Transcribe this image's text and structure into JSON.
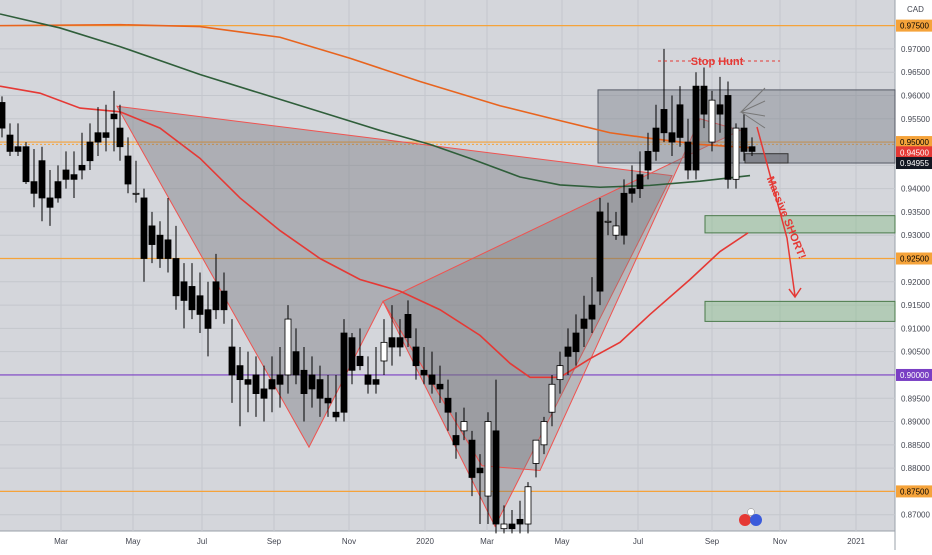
{
  "chart_data": {
    "type": "candlestick",
    "currency_label": "CAD",
    "x_tick_labels": [
      "Mar",
      "May",
      "Jul",
      "Sep",
      "Nov",
      "2020",
      "Mar",
      "May",
      "Jul",
      "Sep",
      "Nov",
      "2021"
    ],
    "y_tick_labels": [
      "0.97000",
      "0.96500",
      "0.96000",
      "0.95500",
      "0.95000",
      "0.94500",
      "0.94000",
      "0.93500",
      "0.93000",
      "0.92500",
      "0.92000",
      "0.91500",
      "0.91000",
      "0.90500",
      "0.90000",
      "0.89500",
      "0.89000",
      "0.88500",
      "0.88000",
      "0.87500",
      "0.87000"
    ],
    "ylim": [
      0.8665,
      0.9805
    ],
    "price_badges": [
      {
        "label": "0.97500",
        "value": 0.975,
        "color": "#f5a33a",
        "text_color": "#000000"
      },
      {
        "label": "0.95000",
        "value": 0.95,
        "color": "#f5a33a",
        "text_color": "#000000"
      },
      {
        "label": "0.94500",
        "value": 0.9478,
        "color": "#e53935",
        "text_color": "#ffffff"
      },
      {
        "label": "0.94955",
        "value": 0.9455,
        "color": "#131722",
        "text_color": "#ffffff"
      },
      {
        "label": "0.92500",
        "value": 0.925,
        "color": "#f5a33a",
        "text_color": "#000000"
      },
      {
        "label": "0.90000",
        "value": 0.9,
        "color": "#7a3fc4",
        "text_color": "#ffffff"
      },
      {
        "label": "0.87500",
        "value": 0.875,
        "color": "#f5a33a",
        "text_color": "#000000"
      }
    ],
    "horizontal_levels": [
      {
        "value": 0.975,
        "color": "#f5a33a"
      },
      {
        "value": 0.95,
        "color": "#f5a33a"
      },
      {
        "value": 0.925,
        "color": "#f5a33a"
      },
      {
        "value": 0.9,
        "color": "#7a3fc4"
      },
      {
        "value": 0.875,
        "color": "#f5a33a"
      }
    ],
    "moving_averages": [
      {
        "color": "#e8641e",
        "points": [
          [
            0,
            0.975
          ],
          [
            120,
            0.9752
          ],
          [
            200,
            0.9748
          ],
          [
            280,
            0.9725
          ],
          [
            350,
            0.968
          ],
          [
            420,
            0.963
          ],
          [
            500,
            0.9578
          ],
          [
            560,
            0.9546
          ],
          [
            610,
            0.952
          ],
          [
            650,
            0.9508
          ],
          [
            700,
            0.9495
          ],
          [
            750,
            0.9488
          ]
        ]
      },
      {
        "color": "#2f5e3a",
        "points": [
          [
            0,
            0.9775
          ],
          [
            60,
            0.9745
          ],
          [
            120,
            0.9705
          ],
          [
            200,
            0.9645
          ],
          [
            260,
            0.9605
          ],
          [
            320,
            0.9565
          ],
          [
            380,
            0.9525
          ],
          [
            430,
            0.9495
          ],
          [
            470,
            0.9465
          ],
          [
            520,
            0.9425
          ],
          [
            560,
            0.9408
          ],
          [
            600,
            0.9403
          ],
          [
            650,
            0.9407
          ],
          [
            700,
            0.9416
          ],
          [
            750,
            0.9428
          ]
        ]
      },
      {
        "color": "#e53935",
        "points": [
          [
            0,
            0.962
          ],
          [
            40,
            0.9605
          ],
          [
            80,
            0.9573
          ],
          [
            120,
            0.9565
          ],
          [
            160,
            0.953
          ],
          [
            200,
            0.9465
          ],
          [
            240,
            0.938
          ],
          [
            280,
            0.931
          ],
          [
            320,
            0.925
          ],
          [
            360,
            0.9205
          ],
          [
            400,
            0.918
          ],
          [
            440,
            0.914
          ],
          [
            480,
            0.9085
          ],
          [
            510,
            0.9025
          ],
          [
            530,
            0.8995
          ],
          [
            560,
            0.8995
          ],
          [
            590,
            0.9035
          ],
          [
            620,
            0.907
          ],
          [
            650,
            0.913
          ],
          [
            690,
            0.9205
          ],
          [
            720,
            0.9265
          ],
          [
            748,
            0.9305
          ]
        ]
      }
    ],
    "harmonic_patterns": [
      {
        "fill": "rgba(110,110,115,0.38)",
        "points": [
          [
            117,
            0.9577
          ],
          [
            309,
            0.8845
          ],
          [
            383,
            0.9158
          ],
          [
            495,
            0.8675
          ],
          [
            672,
            0.9428
          ]
        ]
      },
      {
        "fill": "rgba(120,120,125,0.32)",
        "points": [
          [
            383,
            0.9158
          ],
          [
            482,
            0.8805
          ],
          [
            540,
            0.8795
          ],
          [
            700,
            0.955
          ],
          [
            740,
            0.9525
          ]
        ]
      }
    ],
    "zones": [
      {
        "x1": 598,
        "x2": 895,
        "top": 0.9612,
        "bottom": 0.9455,
        "fill": "rgba(120,123,134,0.42)",
        "stroke": "#555a66"
      },
      {
        "x1": 705,
        "x2": 895,
        "top": 0.9342,
        "bottom": 0.9305,
        "fill": "rgba(140,190,140,0.45)",
        "stroke": "#4a7a4a"
      },
      {
        "x1": 705,
        "x2": 895,
        "top": 0.9158,
        "bottom": 0.9115,
        "fill": "rgba(140,190,140,0.45)",
        "stroke": "#4a7a4a"
      },
      {
        "x1": 745,
        "x2": 788,
        "top": 0.9475,
        "bottom": 0.9455,
        "fill": "rgba(90,90,100,0.5)",
        "stroke": "#333333"
      }
    ],
    "annotations": [
      {
        "text": "Stop Hunt",
        "color": "#e53935",
        "x": 717,
        "value": 0.9665
      },
      {
        "text": "Massive SHORT!",
        "color": "#e53935",
        "x": 783,
        "value": 0.9335,
        "rotate": 68
      }
    ],
    "candles": [
      [
        2,
        0.9585,
        0.9598,
        0.953,
        0.951
      ],
      [
        10,
        0.9515,
        0.954,
        0.948,
        0.947
      ],
      [
        18,
        0.949,
        0.954,
        0.948,
        0.947
      ],
      [
        26,
        0.949,
        0.95,
        0.9415,
        0.941
      ],
      [
        34,
        0.9415,
        0.9485,
        0.939,
        0.936
      ],
      [
        42,
        0.946,
        0.949,
        0.938,
        0.933
      ],
      [
        50,
        0.938,
        0.944,
        0.936,
        0.932
      ],
      [
        58,
        0.9415,
        0.945,
        0.938,
        0.937
      ],
      [
        66,
        0.944,
        0.948,
        0.942,
        0.94
      ],
      [
        74,
        0.943,
        0.948,
        0.942,
        0.938
      ],
      [
        82,
        0.945,
        0.952,
        0.944,
        0.942
      ],
      [
        90,
        0.95,
        0.954,
        0.946,
        0.944
      ],
      [
        98,
        0.952,
        0.9575,
        0.95,
        0.947
      ],
      [
        106,
        0.952,
        0.958,
        0.951,
        0.948
      ],
      [
        114,
        0.956,
        0.961,
        0.955,
        0.948
      ],
      [
        120,
        0.953,
        0.958,
        0.949,
        0.946
      ],
      [
        128,
        0.947,
        0.951,
        0.941,
        0.939
      ],
      [
        136,
        0.939,
        0.946,
        0.939,
        0.937
      ],
      [
        144,
        0.938,
        0.94,
        0.925,
        0.92
      ],
      [
        152,
        0.932,
        0.935,
        0.928,
        0.924
      ],
      [
        160,
        0.93,
        0.933,
        0.925,
        0.923
      ],
      [
        168,
        0.929,
        0.938,
        0.925,
        0.922
      ],
      [
        176,
        0.925,
        0.932,
        0.917,
        0.914
      ],
      [
        184,
        0.92,
        0.924,
        0.916,
        0.91
      ],
      [
        192,
        0.919,
        0.924,
        0.914,
        0.912
      ],
      [
        200,
        0.917,
        0.922,
        0.913,
        0.909
      ],
      [
        208,
        0.914,
        0.92,
        0.91,
        0.904
      ],
      [
        216,
        0.92,
        0.926,
        0.914,
        0.912
      ],
      [
        224,
        0.918,
        0.922,
        0.914,
        0.911
      ],
      [
        232,
        0.906,
        0.912,
        0.9,
        0.894
      ],
      [
        240,
        0.902,
        0.906,
        0.899,
        0.889
      ],
      [
        248,
        0.899,
        0.905,
        0.898,
        0.892
      ],
      [
        256,
        0.9,
        0.904,
        0.896,
        0.891
      ],
      [
        264,
        0.897,
        0.902,
        0.895,
        0.89
      ],
      [
        272,
        0.899,
        0.904,
        0.897,
        0.892
      ],
      [
        280,
        0.9,
        0.906,
        0.898,
        0.893
      ],
      [
        288,
        0.9,
        0.915,
        0.912,
        0.896
      ],
      [
        296,
        0.905,
        0.91,
        0.9,
        0.898
      ],
      [
        304,
        0.901,
        0.906,
        0.896,
        0.89
      ],
      [
        312,
        0.9,
        0.904,
        0.897,
        0.893
      ],
      [
        320,
        0.899,
        0.902,
        0.895,
        0.891
      ],
      [
        328,
        0.895,
        0.9,
        0.894,
        0.891
      ],
      [
        336,
        0.892,
        0.9,
        0.891,
        0.89
      ],
      [
        344,
        0.909,
        0.912,
        0.892,
        0.89
      ],
      [
        352,
        0.908,
        0.909,
        0.901,
        0.898
      ],
      [
        360,
        0.904,
        0.91,
        0.902,
        0.901
      ],
      [
        368,
        0.9,
        0.904,
        0.898,
        0.896
      ],
      [
        376,
        0.899,
        0.906,
        0.898,
        0.896
      ],
      [
        384,
        0.903,
        0.912,
        0.907,
        0.9
      ],
      [
        392,
        0.908,
        0.915,
        0.906,
        0.902
      ],
      [
        400,
        0.908,
        0.912,
        0.906,
        0.904
      ],
      [
        408,
        0.913,
        0.916,
        0.908,
        0.906
      ],
      [
        416,
        0.906,
        0.91,
        0.902,
        0.899
      ],
      [
        424,
        0.901,
        0.906,
        0.9,
        0.898
      ],
      [
        432,
        0.9,
        0.905,
        0.898,
        0.896
      ],
      [
        440,
        0.898,
        0.902,
        0.897,
        0.894
      ],
      [
        448,
        0.895,
        0.899,
        0.892,
        0.888
      ],
      [
        456,
        0.887,
        0.892,
        0.885,
        0.882
      ],
      [
        464,
        0.888,
        0.893,
        0.89,
        0.886
      ],
      [
        472,
        0.886,
        0.888,
        0.878,
        0.874
      ],
      [
        480,
        0.88,
        0.883,
        0.879,
        0.868
      ],
      [
        488,
        0.874,
        0.892,
        0.89,
        0.868
      ],
      [
        496,
        0.888,
        0.899,
        0.868,
        0.866
      ],
      [
        504,
        0.867,
        0.872,
        0.868,
        0.866
      ],
      [
        512,
        0.868,
        0.871,
        0.867,
        0.866
      ],
      [
        520,
        0.869,
        0.873,
        0.868,
        0.866
      ],
      [
        528,
        0.868,
        0.877,
        0.876,
        0.866
      ],
      [
        536,
        0.881,
        0.885,
        0.886,
        0.878
      ],
      [
        544,
        0.885,
        0.891,
        0.89,
        0.883
      ],
      [
        552,
        0.892,
        0.9,
        0.898,
        0.889
      ],
      [
        560,
        0.899,
        0.905,
        0.902,
        0.896
      ],
      [
        568,
        0.906,
        0.91,
        0.904,
        0.9
      ],
      [
        576,
        0.909,
        0.913,
        0.905,
        0.902
      ],
      [
        584,
        0.912,
        0.917,
        0.91,
        0.906
      ],
      [
        592,
        0.915,
        0.921,
        0.912,
        0.909
      ],
      [
        600,
        0.935,
        0.938,
        0.918,
        0.915
      ],
      [
        608,
        0.933,
        0.937,
        0.933,
        0.93
      ],
      [
        616,
        0.93,
        0.935,
        0.932,
        0.929
      ],
      [
        624,
        0.939,
        0.942,
        0.93,
        0.928
      ],
      [
        632,
        0.94,
        0.945,
        0.939,
        0.937
      ],
      [
        640,
        0.943,
        0.948,
        0.94,
        0.938
      ],
      [
        648,
        0.948,
        0.952,
        0.944,
        0.942
      ],
      [
        656,
        0.953,
        0.958,
        0.948,
        0.946
      ],
      [
        664,
        0.957,
        0.97,
        0.952,
        0.95
      ],
      [
        672,
        0.952,
        0.96,
        0.95,
        0.947
      ],
      [
        680,
        0.958,
        0.962,
        0.951,
        0.949
      ],
      [
        688,
        0.95,
        0.955,
        0.944,
        0.942
      ],
      [
        696,
        0.962,
        0.965,
        0.944,
        0.942
      ],
      [
        704,
        0.962,
        0.966,
        0.956,
        0.953
      ],
      [
        712,
        0.95,
        0.961,
        0.959,
        0.948
      ],
      [
        720,
        0.958,
        0.964,
        0.956,
        0.952
      ],
      [
        728,
        0.96,
        0.963,
        0.942,
        0.94
      ],
      [
        736,
        0.942,
        0.954,
        0.953,
        0.94
      ],
      [
        744,
        0.953,
        0.956,
        0.948,
        0.946
      ],
      [
        752,
        0.949,
        0.951,
        0.948,
        0.947
      ]
    ]
  }
}
